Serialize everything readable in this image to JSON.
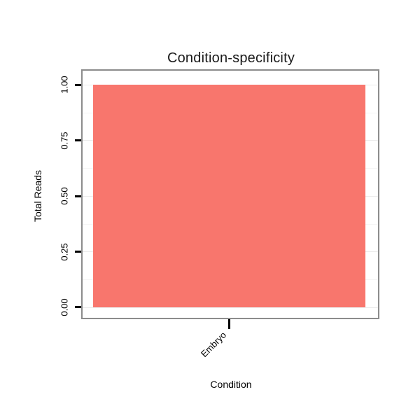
{
  "chart_data": {
    "type": "bar",
    "title": "Condition-specificity",
    "xlabel": "Condition",
    "ylabel": "Total Reads",
    "categories": [
      "Embryo"
    ],
    "values": [
      1.0
    ],
    "ylim": [
      0,
      1.0
    ],
    "yticks": [
      0,
      0.25,
      0.5,
      0.75,
      1.0
    ],
    "ytick_labels": [
      "0.00",
      "0.25",
      "0.50",
      "0.75",
      "1.00"
    ],
    "grid": "horizontal major and minor lines",
    "legend_position": "none",
    "colors": {
      "bar": "#F8766D",
      "panel_border": "#8C8C8C",
      "grid_major": "#EBEBEB",
      "grid_minor": "#F5F5F5",
      "axis_text": "#000000"
    }
  }
}
